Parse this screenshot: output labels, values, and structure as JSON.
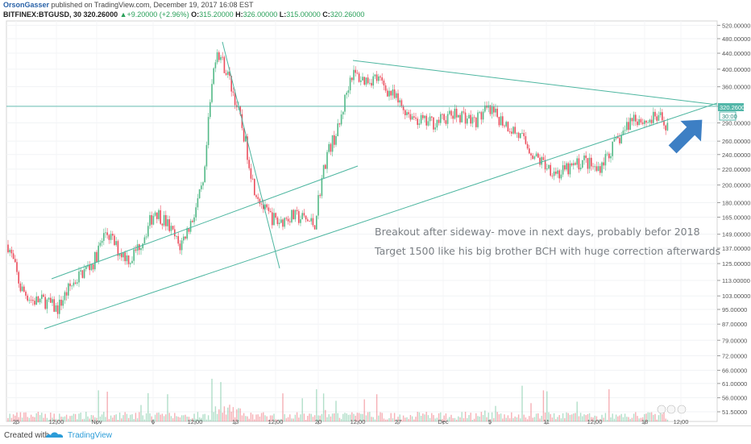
{
  "header": {
    "author": "OrsonGasser",
    "published_text": "published on TradingView.com, December 19, 2017 16:08 EST",
    "symbol": "BITFINEX:BTGUSD, 30",
    "last": "320.26000",
    "triangle": "▲",
    "change": "+9.20000 (+2.96%)",
    "o_label": "O:",
    "o": "315.20000",
    "h_label": "H:",
    "h": "326.00000",
    "l_label": "L:",
    "l": "315.00000",
    "c_label": "C:",
    "c": "320.26000"
  },
  "price_labels": {
    "current": "320.26000",
    "countdown": "30:00"
  },
  "annotations": [
    "Breakout after sideway- move in next days, probably befor 2018",
    "Target 1500 like his big brother BCH with huge correction afterwards"
  ],
  "footer": {
    "created_with": "Created with",
    "brand": "TradingView"
  },
  "colors": {
    "up": "#53b987",
    "down": "#eb4d5c",
    "trendline": "#4db6a0",
    "arrow": "#3d7fc4",
    "hline": "#52b6a8"
  },
  "chart_data": {
    "type": "line",
    "title": "BITFINEX:BTGUSD, 30",
    "y_scale": "log",
    "ylim": [
      51.5,
      545
    ],
    "y_ticks": [
      "520.00000",
      "480.00000",
      "440.00000",
      "400.00000",
      "360.00000",
      "320.26000",
      "290.00000",
      "260.00000",
      "240.00000",
      "220.00000",
      "200.00000",
      "180.00000",
      "165.00000",
      "149.00000",
      "137.00000",
      "125.00000",
      "113.00000",
      "103.00000",
      "95.00000",
      "87.00000",
      "79.00000",
      "72.00000",
      "66.00000",
      "61.00000",
      "56.00000",
      "51.50000"
    ],
    "x_ticks": [
      "25",
      "12:00",
      "Nov",
      "6",
      "12:00",
      "13",
      "12:00",
      "20",
      "12:00",
      "27",
      "Dec",
      "5",
      "11",
      "12:00",
      "18",
      "12:00"
    ],
    "series": [
      {
        "name": "BTGUSD",
        "x": [
          "Oct 24",
          "Oct 25",
          "Oct 26",
          "Oct 27",
          "Oct 28",
          "Oct 29",
          "Oct 30",
          "Oct 31",
          "Nov 1",
          "Nov 2",
          "Nov 3",
          "Nov 4",
          "Nov 5",
          "Nov 6",
          "Nov 7",
          "Nov 8",
          "Nov 9",
          "Nov 10",
          "Nov 11",
          "Nov 12",
          "Nov 13",
          "Nov 14",
          "Nov 15",
          "Nov 16",
          "Nov 17",
          "Nov 18",
          "Nov 19",
          "Nov 20",
          "Nov 21",
          "Nov 22",
          "Nov 23",
          "Nov 24",
          "Nov 25",
          "Nov 26",
          "Nov 27",
          "Nov 28",
          "Nov 29",
          "Nov 30",
          "Dec 1",
          "Dec 2",
          "Dec 3",
          "Dec 4",
          "Dec 5",
          "Dec 6",
          "Dec 7",
          "Dec 8",
          "Dec 9",
          "Dec 10",
          "Dec 11",
          "Dec 12",
          "Dec 13",
          "Dec 14",
          "Dec 15",
          "Dec 16",
          "Dec 17",
          "Dec 18",
          "Dec 19"
        ],
        "values": [
          140,
          108,
          100,
          100,
          95,
          108,
          118,
          126,
          152,
          135,
          128,
          145,
          172,
          158,
          138,
          162,
          202,
          455,
          380,
          290,
          200,
          170,
          160,
          166,
          164,
          158,
          240,
          282,
          390,
          375,
          380,
          352,
          322,
          302,
          290,
          292,
          302,
          305,
          292,
          312,
          300,
          282,
          262,
          236,
          224,
          214,
          222,
          232,
          218,
          242,
          268,
          302,
          292,
          300,
          282,
          300,
          320
        ]
      }
    ],
    "trendlines": [
      {
        "from": [
          "Oct 25 12:00",
          86
        ],
        "to": [
          "Dec 21",
          345
        ]
      },
      {
        "from": [
          "Oct 25 12:00",
          115
        ],
        "to": [
          "Nov 22",
          226
        ]
      },
      {
        "from": [
          "Nov 22 12:00",
          420
        ],
        "to": [
          "Dec 21",
          328
        ]
      },
      {
        "from": [
          "Nov 10 12:00",
          477
        ],
        "to": [
          "Nov 14 18:00",
          123
        ]
      }
    ],
    "hline": 320.26
  }
}
